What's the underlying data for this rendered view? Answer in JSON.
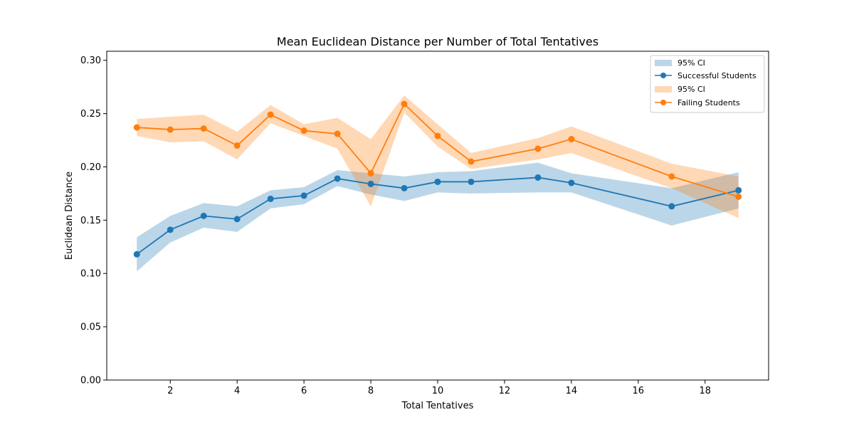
{
  "chart_data": {
    "type": "line",
    "title": "Mean Euclidean Distance per Number of Total Tentatives",
    "xlabel": "Total Tentatives",
    "ylabel": "Euclidean Distance",
    "xlim": [
      0.1,
      19.9
    ],
    "ylim": [
      0.0,
      0.3085
    ],
    "xticks": [
      2,
      4,
      6,
      8,
      10,
      12,
      14,
      16,
      18
    ],
    "yticks": [
      0.0,
      0.05,
      0.1,
      0.15,
      0.2,
      0.25,
      0.3
    ],
    "ytick_labels": [
      "0.00",
      "0.05",
      "0.10",
      "0.15",
      "0.20",
      "0.25",
      "0.30"
    ],
    "grid": false,
    "legend_placement": "top-right",
    "series": [
      {
        "name": "Successful Students",
        "ci_label": "95% CI",
        "color": "#1f77b4",
        "x": [
          1,
          2,
          3,
          4,
          5,
          6,
          7,
          8,
          9,
          10,
          11,
          13,
          14,
          17,
          19
        ],
        "y": [
          0.118,
          0.141,
          0.154,
          0.151,
          0.17,
          0.173,
          0.189,
          0.184,
          0.18,
          0.186,
          0.186,
          0.19,
          0.185,
          0.163,
          0.178
        ],
        "ci_low": [
          0.102,
          0.129,
          0.143,
          0.139,
          0.161,
          0.165,
          0.182,
          0.174,
          0.168,
          0.176,
          0.175,
          0.176,
          0.176,
          0.145,
          0.161
        ],
        "ci_high": [
          0.134,
          0.154,
          0.166,
          0.163,
          0.178,
          0.181,
          0.197,
          0.194,
          0.191,
          0.195,
          0.196,
          0.204,
          0.194,
          0.18,
          0.195
        ]
      },
      {
        "name": "Failing Students",
        "ci_label": "95% CI",
        "color": "#ff7f0e",
        "x": [
          1,
          2,
          3,
          4,
          5,
          6,
          7,
          8,
          9,
          10,
          11,
          13,
          14,
          17,
          19
        ],
        "y": [
          0.237,
          0.235,
          0.236,
          0.22,
          0.249,
          0.234,
          0.231,
          0.194,
          0.259,
          0.229,
          0.205,
          0.217,
          0.226,
          0.191,
          0.172
        ],
        "ci_low": [
          0.229,
          0.223,
          0.224,
          0.207,
          0.241,
          0.229,
          0.217,
          0.163,
          0.251,
          0.219,
          0.198,
          0.207,
          0.213,
          0.18,
          0.152
        ],
        "ci_high": [
          0.245,
          0.247,
          0.249,
          0.233,
          0.258,
          0.24,
          0.246,
          0.226,
          0.267,
          0.24,
          0.213,
          0.227,
          0.238,
          0.203,
          0.191
        ]
      }
    ]
  }
}
